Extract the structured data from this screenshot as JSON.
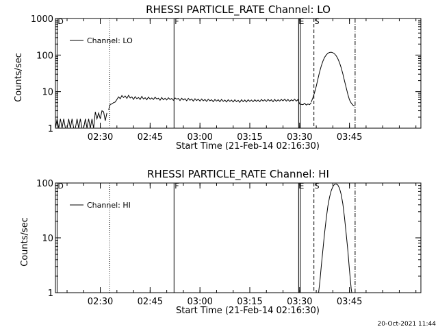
{
  "footer": {
    "timestamp": "20-Oct-2021 11:44"
  },
  "chart_data": [
    {
      "type": "line",
      "title": "RHESSI PARTICLE_RATE Channel: LO",
      "xlabel": "Start Time (21-Feb-14 02:16:30)",
      "ylabel": "Counts/sec",
      "yscale": "log",
      "ylim": [
        1,
        1000
      ],
      "xlim_minutes_after_start": [
        0,
        110
      ],
      "x_ticks": [
        {
          "label": "02:30",
          "min": 13.5
        },
        {
          "label": "02:45",
          "min": 28.5
        },
        {
          "label": "03:00",
          "min": 43.5
        },
        {
          "label": "03:15",
          "min": 58.5
        },
        {
          "label": "03:30",
          "min": 73.5
        },
        {
          "label": "03:45",
          "min": 88.5
        }
      ],
      "y_ticks": [
        {
          "label": "1",
          "value": 1
        },
        {
          "label": "10",
          "value": 10
        },
        {
          "label": "100",
          "value": 100
        },
        {
          "label": "1000",
          "value": 1000
        }
      ],
      "legend": {
        "label": "Channel: LO",
        "position": "top-left"
      },
      "event_markers": [
        {
          "label": "D",
          "min": 0.5,
          "style": "solid"
        },
        {
          "label": "",
          "min": 16.3,
          "style": "dotted"
        },
        {
          "label": "F",
          "min": 35.7,
          "style": "solid"
        },
        {
          "label": "E",
          "min": 73.2,
          "style": "solid"
        },
        {
          "label": "",
          "min": 73.7,
          "style": "solid"
        },
        {
          "label": "S",
          "min": 77.8,
          "style": "dashed"
        },
        {
          "label": "",
          "min": 90.2,
          "style": "dashdot"
        }
      ],
      "series": [
        {
          "name": "Channel: LO",
          "segments": [
            {
              "x": [
                0,
                0.5,
                1,
                1.5,
                2,
                2.5,
                3,
                3.5,
                4,
                4.5,
                5,
                5.5,
                6,
                6.5,
                7,
                7.5,
                8,
                8.5,
                9,
                9.5,
                10,
                10.5,
                11,
                11.5,
                12,
                12.5,
                13,
                13.5,
                14,
                14.5,
                15,
                15.5
              ],
              "y": [
                1,
                1.8,
                1,
                1.8,
                1,
                1.8,
                1,
                1,
                1.8,
                1,
                1.8,
                1,
                1,
                1.8,
                1,
                1.8,
                1,
                1,
                1.8,
                1,
                1.8,
                1,
                1.8,
                1,
                2.8,
                1.8,
                2.6,
                1.8,
                3,
                2.8,
                1.6,
                2.6
              ]
            },
            {
              "x": [
                16,
                16.5,
                17,
                17.5,
                18,
                18.5,
                19,
                19.5,
                20,
                20.5,
                21,
                21.5,
                22,
                22.5,
                23,
                23.5,
                24,
                24.5,
                25,
                25.5,
                26,
                26.5,
                27,
                27.5,
                28,
                28.5,
                29,
                29.5,
                30,
                30.5,
                31,
                31.5,
                32,
                32.5,
                33,
                33.5,
                34,
                34.5,
                35,
                35.5,
                36,
                36.5,
                37,
                37.5,
                38,
                38.5,
                39,
                39.5,
                40,
                40.5,
                41,
                41.5,
                42,
                42.5,
                43,
                43.5,
                44,
                44.5,
                45,
                45.5,
                46,
                46.5,
                47,
                47.5,
                48,
                48.5,
                49,
                49.5,
                50,
                50.5,
                51,
                51.5,
                52,
                52.5,
                53,
                53.5,
                54,
                54.5,
                55,
                55.5,
                56,
                56.5,
                57,
                57.5,
                58,
                58.5,
                59,
                59.5,
                60,
                60.5,
                61,
                61.5,
                62,
                62.5,
                63,
                63.5,
                64,
                64.5,
                65,
                65.5,
                66,
                66.5,
                67,
                67.5,
                68,
                68.5,
                69,
                69.5,
                70,
                70.5,
                71,
                71.5,
                72,
                72.5,
                73,
                73.5,
                74,
                74.5,
                75,
                75.5,
                76,
                76.5,
                77
              ],
              "y": [
                3.2,
                4.5,
                4.6,
                5,
                5.2,
                6.1,
                7.2,
                6.4,
                7.8,
                6.9,
                7.6,
                6.5,
                7.9,
                6.7,
                7.2,
                6.1,
                7.3,
                6.4,
                6.9,
                6.1,
                7.4,
                6.3,
                6.8,
                6.0,
                7.1,
                6.2,
                6.7,
                6.1,
                7.0,
                6.3,
                6.6,
                5.8,
                6.9,
                6.0,
                6.6,
                5.9,
                6.8,
                6.1,
                6.5,
                5.8,
                6.7,
                6.2,
                6.5,
                5.7,
                6.6,
                5.9,
                6.4,
                5.6,
                6.5,
                5.8,
                6.3,
                5.5,
                6.4,
                5.7,
                6.2,
                5.5,
                6.3,
                5.6,
                6.1,
                5.4,
                6.2,
                5.6,
                6.0,
                5.3,
                6.1,
                5.5,
                6.0,
                5.3,
                6.1,
                5.4,
                5.9,
                5.2,
                6.0,
                5.4,
                5.9,
                5.2,
                6.0,
                5.3,
                5.8,
                5.1,
                6.0,
                5.3,
                5.9,
                5.2,
                6.0,
                5.4,
                5.9,
                5.3,
                6.0,
                5.4,
                5.9,
                5.3,
                6.1,
                5.5,
                6.0,
                5.4,
                6.1,
                5.5,
                6.0,
                5.3,
                6.1,
                5.4,
                6.0,
                5.5,
                6.1,
                5.6,
                6.2,
                5.5,
                6.1,
                5.4,
                6.0,
                5.6,
                6.2,
                5.5,
                6.1,
                4.6,
                4.5,
                4.4,
                4.8,
                4.3,
                4.6,
                4.4,
                5.0
              ]
            },
            {
              "x": [
                77,
                77.5,
                78,
                78.5,
                79,
                79.5,
                80,
                80.5,
                81,
                81.5,
                82,
                82.5,
                83,
                83.5,
                84,
                84.5,
                85,
                85.5,
                86,
                86.5,
                87,
                87.5,
                88,
                88.5,
                89,
                89.5,
                90
              ],
              "y": [
                5.2,
                6.8,
                9.5,
                14,
                22,
                34,
                50,
                68,
                86,
                100,
                112,
                118,
                120,
                116,
                108,
                96,
                80,
                62,
                45,
                31,
                20,
                13,
                8.5,
                6.0,
                4.9,
                4.3,
                4.0
              ]
            }
          ]
        }
      ]
    },
    {
      "type": "line",
      "title": "RHESSI PARTICLE_RATE Channel: HI",
      "xlabel": "Start Time (21-Feb-14 02:16:30)",
      "ylabel": "Counts/sec",
      "yscale": "log",
      "ylim": [
        1,
        100
      ],
      "xlim_minutes_after_start": [
        0,
        110
      ],
      "x_ticks": [
        {
          "label": "02:30",
          "min": 13.5
        },
        {
          "label": "02:45",
          "min": 28.5
        },
        {
          "label": "03:00",
          "min": 43.5
        },
        {
          "label": "03:15",
          "min": 58.5
        },
        {
          "label": "03:30",
          "min": 73.5
        },
        {
          "label": "03:45",
          "min": 88.5
        }
      ],
      "y_ticks": [
        {
          "label": "1",
          "value": 1
        },
        {
          "label": "10",
          "value": 10
        },
        {
          "label": "100",
          "value": 100
        }
      ],
      "legend": {
        "label": "Channel: HI",
        "position": "top-left"
      },
      "event_markers": [
        {
          "label": "D",
          "min": 0.5,
          "style": "solid"
        },
        {
          "label": "",
          "min": 16.3,
          "style": "dotted"
        },
        {
          "label": "F",
          "min": 35.7,
          "style": "solid"
        },
        {
          "label": "E",
          "min": 73.2,
          "style": "solid"
        },
        {
          "label": "",
          "min": 73.7,
          "style": "solid"
        },
        {
          "label": "S",
          "min": 77.8,
          "style": "dashed"
        },
        {
          "label": "",
          "min": 90.2,
          "style": "dashdot"
        }
      ],
      "series": [
        {
          "name": "Channel: HI",
          "segments": [
            {
              "x": [
                79.2,
                79.6,
                80,
                80.5,
                81,
                81.5,
                82,
                82.5,
                83,
                83.5,
                84,
                84.5,
                85,
                85.5,
                86,
                86.5,
                87,
                87.5,
                88,
                88.5,
                89,
                89.2
              ],
              "y": [
                1,
                1.6,
                3,
                6,
                12,
                22,
                38,
                55,
                72,
                86,
                95,
                96,
                92,
                80,
                62,
                42,
                24,
                12,
                6,
                2.6,
                1.2,
                1
              ]
            }
          ]
        }
      ]
    }
  ]
}
